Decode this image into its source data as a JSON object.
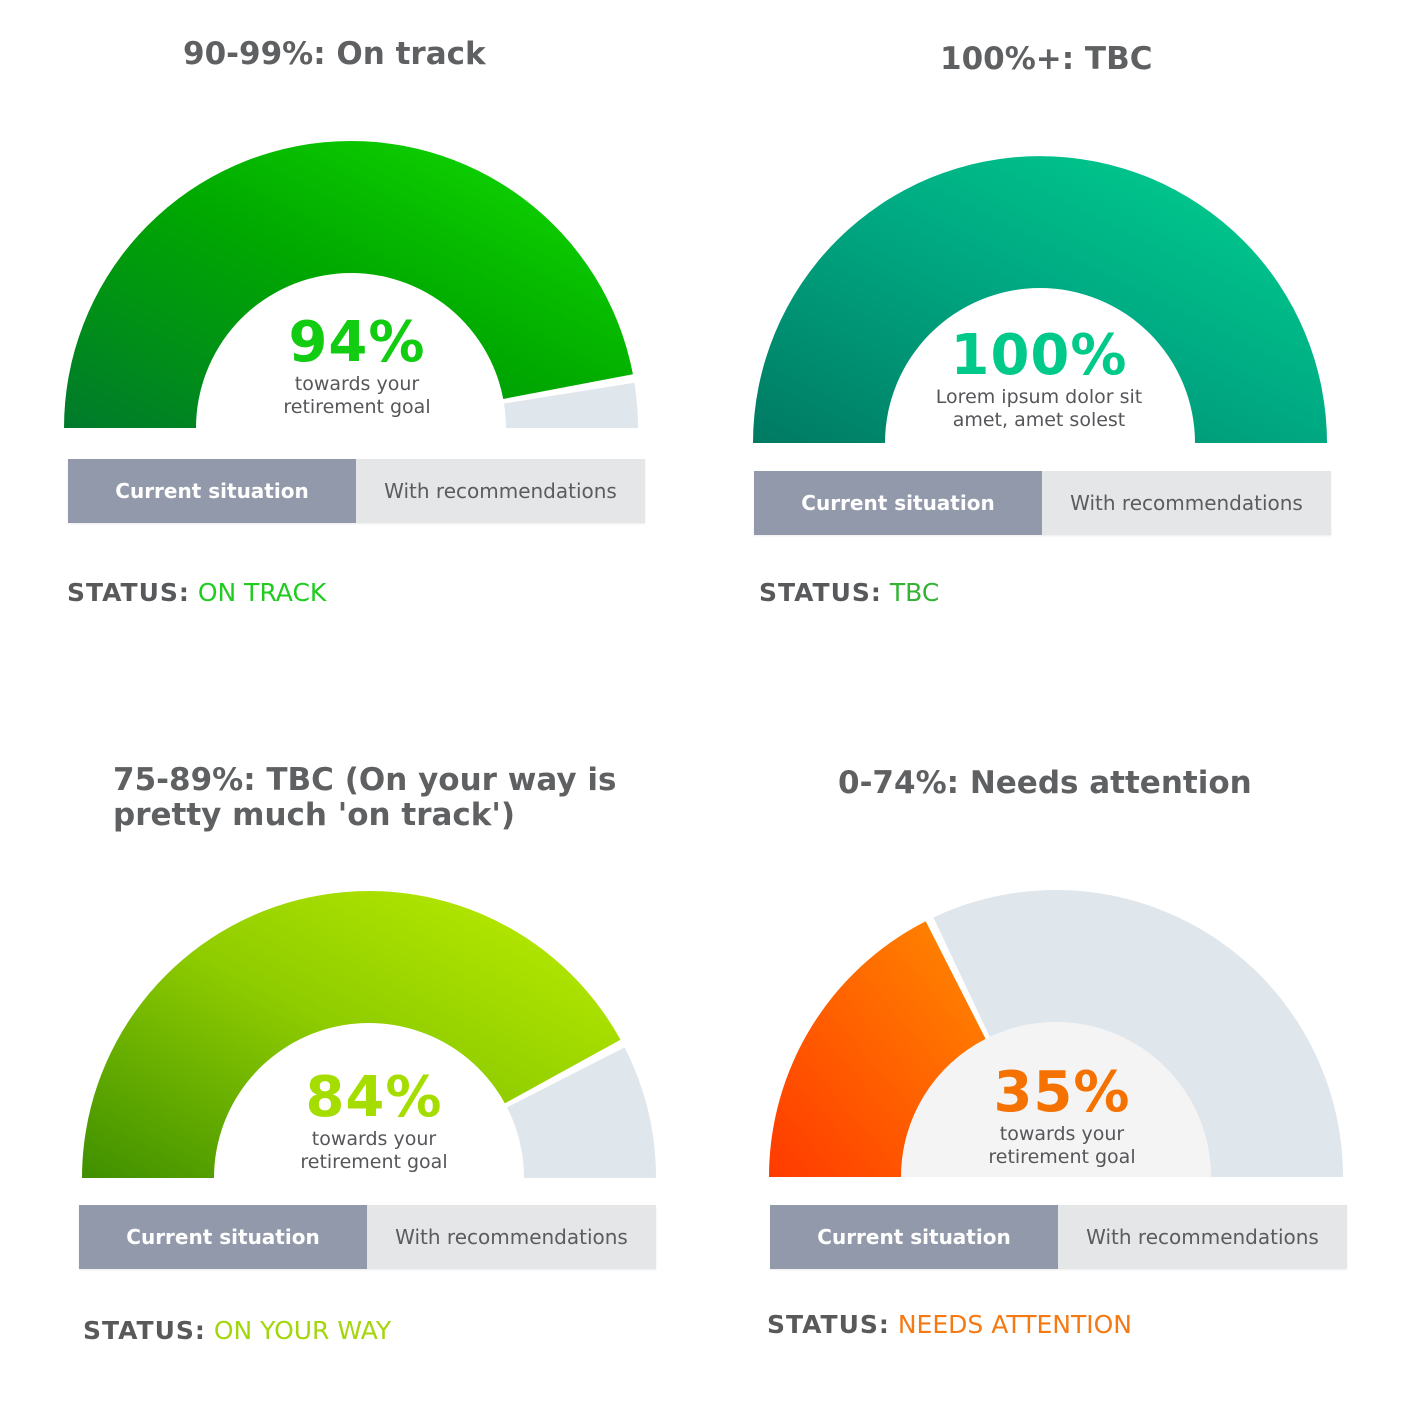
{
  "panels": [
    {
      "title": "90-99%: On track",
      "percent": 94,
      "percent_label": "94%",
      "subtitle_line1": "towards your",
      "subtitle_line2": "retirement goal",
      "accent": "#11cc11",
      "gradient": [
        "#007a2c",
        "#00a800",
        "#14e000"
      ],
      "toggle": {
        "current": "Current situation",
        "recommendations": "With recommendations"
      },
      "status_label": "STATUS:",
      "status_value": "ON TRACK",
      "status_color": "#1fcc1f"
    },
    {
      "title": "100%+: TBC",
      "percent": 100,
      "percent_label": "100%",
      "subtitle_line1": "Lorem ipsum dolor sit",
      "subtitle_line2": "amet, amet solest",
      "accent": "#00c98a",
      "gradient": [
        "#007a62",
        "#00a882",
        "#00d490"
      ],
      "toggle": {
        "current": "Current situation",
        "recommendations": "With recommendations"
      },
      "status_label": "STATUS:",
      "status_value": "TBC",
      "status_color": "#34b334"
    },
    {
      "title_line1": "75-89%: TBC (On your way is",
      "title_line2": "pretty much 'on track')",
      "percent": 84,
      "percent_label": "84%",
      "subtitle_line1": "towards your",
      "subtitle_line2": "retirement goal",
      "accent": "#a6dd00",
      "gradient": [
        "#3f8f00",
        "#8fcc00",
        "#bff000"
      ],
      "toggle": {
        "current": "Current situation",
        "recommendations": "With recommendations"
      },
      "status_label": "STATUS:",
      "status_value": "ON YOUR WAY",
      "status_color": "#a4d60c"
    },
    {
      "title": "0-74%: Needs attention",
      "percent": 35,
      "percent_label": "35%",
      "subtitle_line1": "towards your",
      "subtitle_line2": "retirement goal",
      "accent": "#f57100",
      "gradient": [
        "#ff3a00",
        "#ff6200",
        "#ff8a00"
      ],
      "toggle": {
        "current": "Current situation",
        "recommendations": "With recommendations"
      },
      "status_label": "STATUS:",
      "status_value": "NEEDS ATTENTION",
      "status_color": "#f57a14"
    }
  ],
  "track_color": "#dfe6ec",
  "hub_color": "#f4f4f4"
}
